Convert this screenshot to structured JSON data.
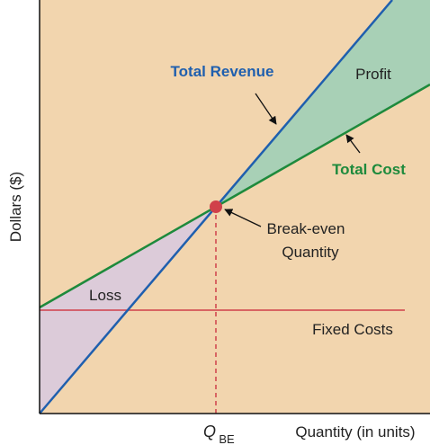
{
  "labels": {
    "total_revenue": "Total Revenue",
    "profit": "Profit",
    "total_cost": "Total Cost",
    "break_even": [
      "Break-even",
      "Quantity"
    ],
    "loss": "Loss",
    "fixed_costs": "Fixed Costs",
    "q_symbol": "Q",
    "q_subscript": "BE",
    "x_axis": "Quantity (in units)",
    "y_axis": "Dollars ($)"
  }
}
